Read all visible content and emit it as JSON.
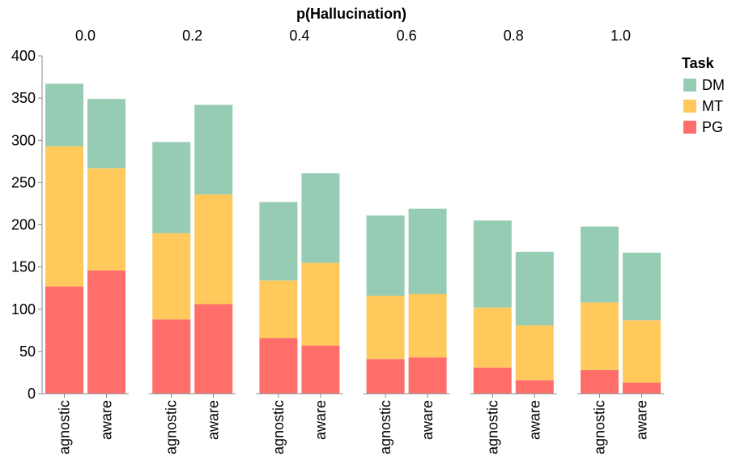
{
  "chart_data": {
    "type": "bar",
    "stacked": true,
    "title": "p(Hallucination)",
    "facets": [
      "0.0",
      "0.2",
      "0.4",
      "0.6",
      "0.8",
      "1.0"
    ],
    "categories": [
      "agnostic",
      "aware"
    ],
    "xlabel": "",
    "ylabel": "",
    "ylim": [
      0,
      400
    ],
    "yticks": [
      "0",
      "50",
      "100",
      "150",
      "200",
      "250",
      "300",
      "350",
      "400"
    ],
    "legend": {
      "title": "Task",
      "position": "top-right"
    },
    "series": [
      {
        "name": "PG",
        "color": "#ff6e6a",
        "values": [
          [
            127,
            146
          ],
          [
            88,
            106
          ],
          [
            66,
            57
          ],
          [
            41,
            43
          ],
          [
            31,
            16
          ],
          [
            28,
            13
          ]
        ]
      },
      {
        "name": "MT",
        "color": "#ffc95c",
        "values": [
          [
            166,
            121
          ],
          [
            102,
            130
          ],
          [
            68,
            98
          ],
          [
            75,
            75
          ],
          [
            71,
            65
          ],
          [
            80,
            74
          ]
        ]
      },
      {
        "name": "DM",
        "color": "#96ccb3",
        "values": [
          [
            74,
            82
          ],
          [
            108,
            106
          ],
          [
            93,
            106
          ],
          [
            95,
            101
          ],
          [
            103,
            87
          ],
          [
            90,
            80
          ]
        ]
      }
    ]
  }
}
